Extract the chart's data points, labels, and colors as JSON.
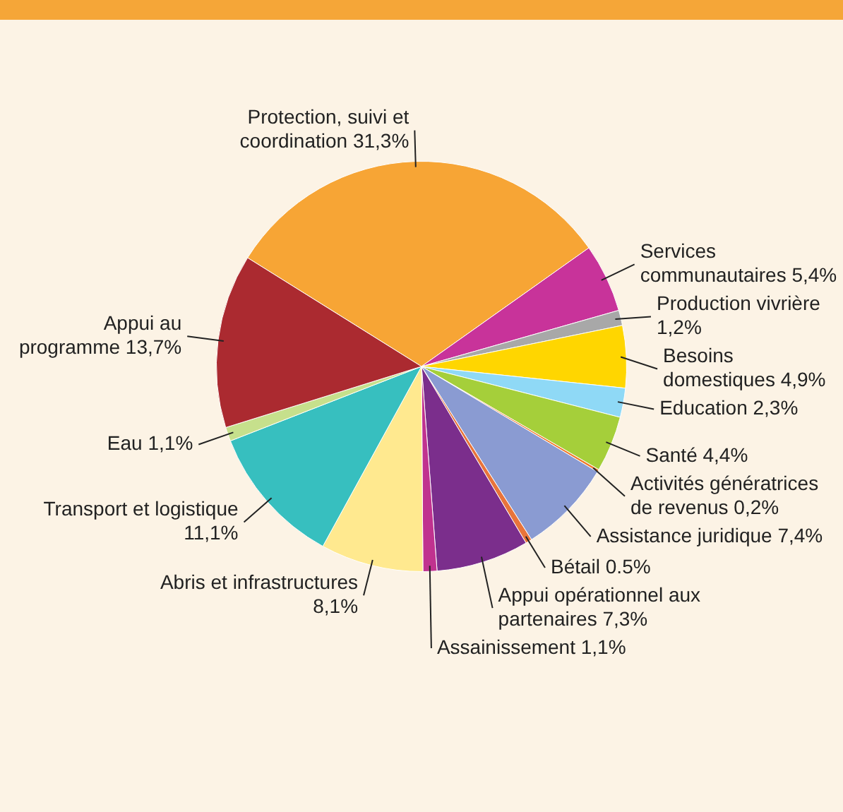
{
  "chart_data": {
    "type": "pie",
    "categories": [
      "Protection, suivi et coordination",
      "Services communautaires",
      "Production vivrière",
      "Besoins domestiques",
      "Education",
      "Santé",
      "Activités génératrices de revenus",
      "Assistance juridique",
      "Bétail",
      "Appui opérationnel aux partenaires",
      "Assainissement",
      "Abris et infrastructures",
      "Transport et logistique",
      "Eau",
      "Appui au programme"
    ],
    "values": [
      31.3,
      5.4,
      1.2,
      4.9,
      2.3,
      4.4,
      0.2,
      7.4,
      0.5,
      7.3,
      1.1,
      8.1,
      11.1,
      1.1,
      13.7
    ],
    "value_labels": [
      "31,3%",
      "5,4%",
      "1,2%",
      "4,9%",
      "2,3%",
      "4,4%",
      "0,2%",
      "7,4%",
      "0.5%",
      "7,3%",
      "1,1%",
      "8,1%",
      "11,1%",
      "1,1%",
      "13,7%"
    ],
    "colors": [
      "#f7a535",
      "#c8339a",
      "#a8a8a8",
      "#ffd600",
      "#8fd9f6",
      "#a5cf3a",
      "#f07a2a",
      "#8a9bd2",
      "#e8743b",
      "#7b2e8c",
      "#c0328f",
      "#ffe98f",
      "#37bfbf",
      "#c6e08c",
      "#ab2a30"
    ],
    "legend": false
  }
}
